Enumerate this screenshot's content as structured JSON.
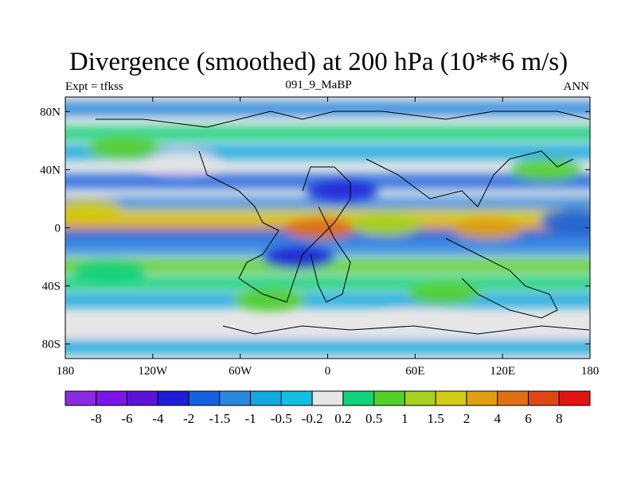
{
  "title": "Divergence (smoothed) at 200 hPa (10**6 m/s)",
  "subtitle_left": "Expt = tfkss",
  "subtitle_center": "091_9_MaBP",
  "subtitle_right": "ANN",
  "chart_data": {
    "type": "heatmap",
    "title": "Divergence (smoothed) at 200 hPa (10**6 m/s)",
    "x_axis": {
      "range": [
        -180,
        180
      ],
      "ticks": [
        -180,
        -120,
        -60,
        0,
        60,
        120,
        180
      ],
      "tick_labels": [
        "180",
        "120W",
        "60W",
        "0",
        "60E",
        "120E",
        "180"
      ]
    },
    "y_axis": {
      "range": [
        -90,
        90
      ],
      "ticks": [
        80,
        40,
        0,
        -40,
        -80
      ],
      "tick_labels": [
        "80N",
        "40N",
        "0",
        "40S",
        "80S"
      ]
    },
    "colorbar": {
      "levels": [
        "-8",
        "-6",
        "-4",
        "-2",
        "-1.5",
        "-1",
        "-0.5",
        "-0.2",
        "0.2",
        "0.5",
        "1",
        "1.5",
        "2",
        "4",
        "6",
        "8"
      ],
      "colors": [
        "#8a2be2",
        "#7b16e6",
        "#5a14d9",
        "#1e1ed8",
        "#1560e0",
        "#2a87e0",
        "#12a8e0",
        "#12bfe0",
        "#e6e6e6",
        "#0fd27a",
        "#55d028",
        "#a5d21e",
        "#d2cc12",
        "#e0a012",
        "#e07014",
        "#e04614",
        "#e01414"
      ]
    },
    "bands": [
      {
        "lat": 82,
        "level": -1
      },
      {
        "lat": 65,
        "level": 0.5
      },
      {
        "lat": 52,
        "level": -0.5
      },
      {
        "lat": 32,
        "level": -1.5
      },
      {
        "lat": 16,
        "level": -1
      },
      {
        "lat": 8,
        "level": 2
      },
      {
        "lat": 0,
        "level": 4
      },
      {
        "lat": -6,
        "level": -1.5
      },
      {
        "lat": -14,
        "level": -1
      },
      {
        "lat": -26,
        "level": 1
      },
      {
        "lat": -38,
        "level": 0.5
      },
      {
        "lat": -50,
        "level": -0.5
      },
      {
        "lat": -70,
        "level": 0.2
      },
      {
        "lat": -82,
        "level": -0.5
      }
    ],
    "blobs": [
      {
        "lon": -5,
        "lat": 0,
        "level": 6
      },
      {
        "lon": 110,
        "lat": 0,
        "level": 4
      },
      {
        "lon": 40,
        "lat": 2,
        "level": 1.5
      },
      {
        "lon": -165,
        "lat": 12,
        "level": 2
      },
      {
        "lon": 150,
        "lat": 40,
        "level": 1
      },
      {
        "lon": -140,
        "lat": 55,
        "level": 1
      },
      {
        "lon": 10,
        "lat": 25,
        "level": -2
      },
      {
        "lon": -20,
        "lat": -20,
        "level": -2
      },
      {
        "lon": 80,
        "lat": -45,
        "level": 1
      },
      {
        "lon": -150,
        "lat": -30,
        "level": 0.5
      },
      {
        "lon": -40,
        "lat": -50,
        "level": 1
      },
      {
        "lon": 170,
        "lat": 5,
        "level": -1.5
      },
      {
        "lon": -100,
        "lat": 45,
        "level": 0.2
      },
      {
        "lon": 60,
        "lat": -65,
        "level": 0.2
      }
    ]
  }
}
